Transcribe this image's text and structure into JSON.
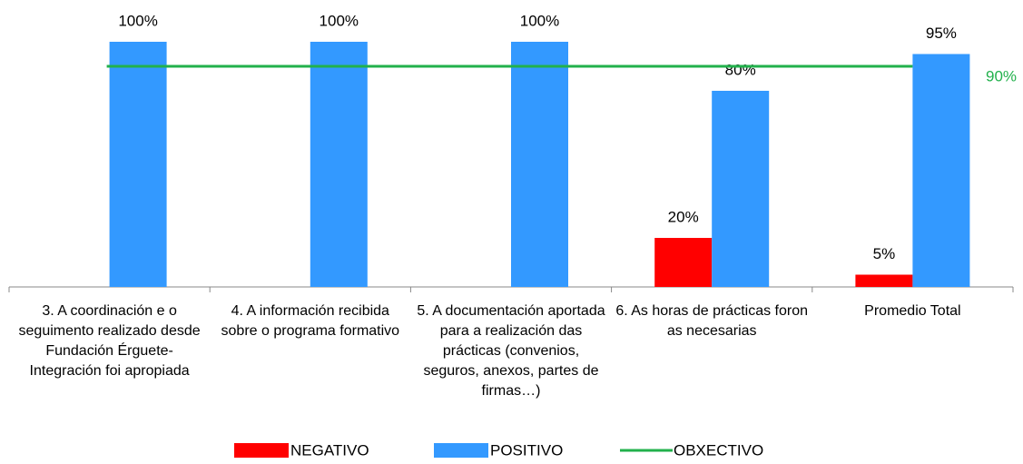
{
  "chart_data": {
    "type": "bar",
    "categories": [
      "3. A coordinación e o seguimento realizado desde Fundación Érguete-Integración foi apropiada",
      "4.  A información recibida sobre o programa formativo",
      "5. A documentación aportada para a realización das prácticas (convenios, seguros, anexos, partes de firmas…)",
      "6. As horas de prácticas foron as necesarias",
      "Promedio Total"
    ],
    "series": [
      {
        "name": "NEGATIVO",
        "color": "#ff0000",
        "values": [
          0,
          0,
          0,
          20,
          5
        ],
        "value_labels": [
          null,
          null,
          null,
          "20%",
          "5%"
        ]
      },
      {
        "name": "POSITIVO",
        "color": "#3399ff",
        "values": [
          100,
          100,
          100,
          80,
          95
        ],
        "value_labels": [
          "100%",
          "100%",
          "100%",
          "80%",
          "95%"
        ]
      }
    ],
    "target": {
      "name": "OBXECTIVO",
      "value": 90,
      "label": "90%",
      "color": "#22b14c"
    },
    "ylim": [
      0,
      100
    ]
  }
}
